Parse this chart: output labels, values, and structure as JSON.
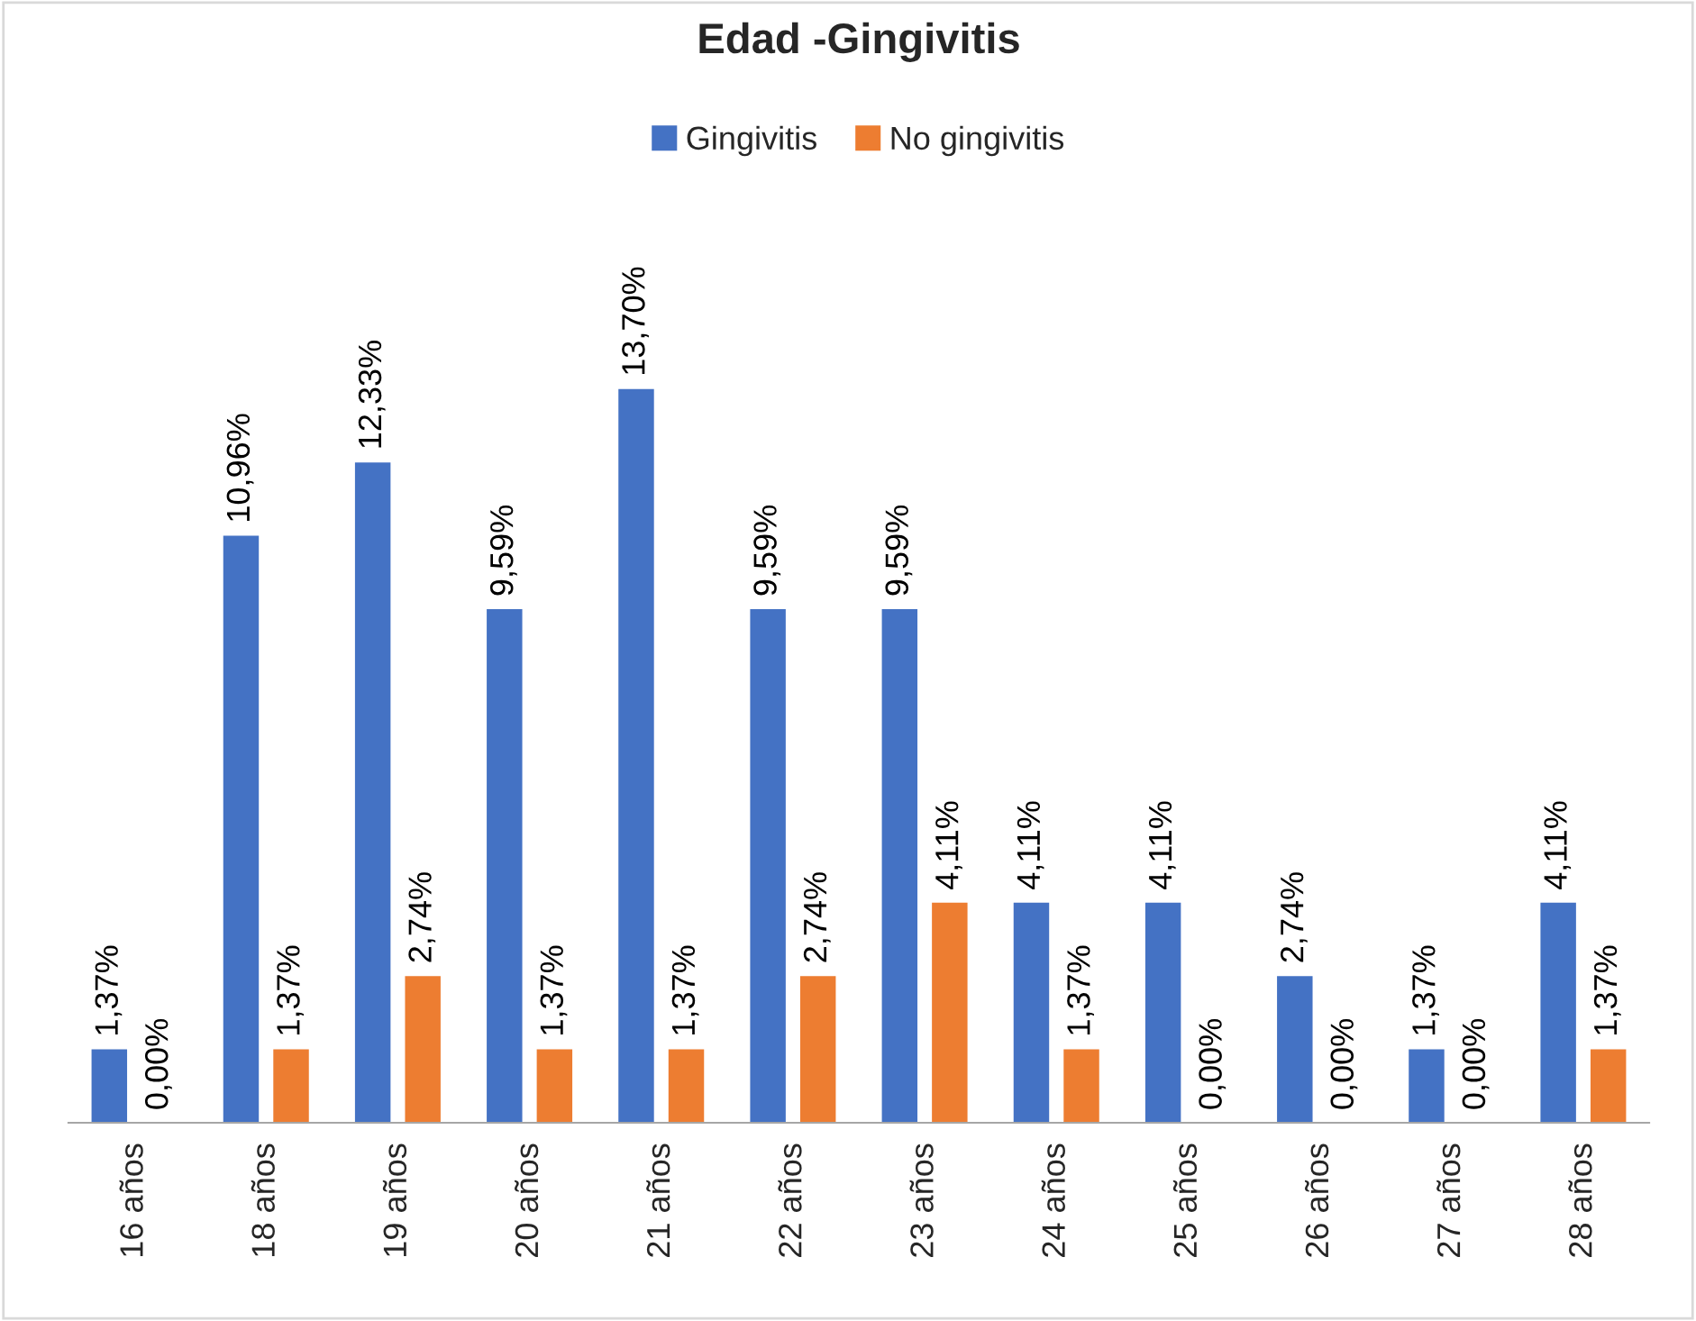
{
  "chart_data": {
    "type": "bar",
    "title": "Edad -Gingivitis",
    "categories": [
      "16 años",
      "18 años",
      "19 años",
      "20 años",
      "21 años",
      "22 años",
      "23 años",
      "24 años",
      "25 años",
      "26 años",
      "27 años",
      "28 años"
    ],
    "series": [
      {
        "name": "Gingivitis",
        "color": "#4472c4",
        "values": [
          1.37,
          10.96,
          12.33,
          9.59,
          13.7,
          9.59,
          9.59,
          4.11,
          4.11,
          2.74,
          1.37,
          4.11
        ],
        "value_labels": [
          "1,37%",
          "10,96%",
          "12,33%",
          "9,59%",
          "13,70%",
          "9,59%",
          "9,59%",
          "4,11%",
          "4,11%",
          "2,74%",
          "1,37%",
          "4,11%"
        ]
      },
      {
        "name": "No gingivitis",
        "color": "#ed7d31",
        "values": [
          0,
          1.37,
          2.74,
          1.37,
          1.37,
          2.74,
          4.11,
          1.37,
          0,
          0,
          0,
          1.37
        ],
        "value_labels": [
          "0,00%",
          "1,37%",
          "2,74%",
          "1,37%",
          "1,37%",
          "2,74%",
          "4,11%",
          "1,37%",
          "0,00%",
          "0,00%",
          "0,00%",
          "1,37%"
        ]
      }
    ],
    "legend": "top",
    "grid": false
  }
}
